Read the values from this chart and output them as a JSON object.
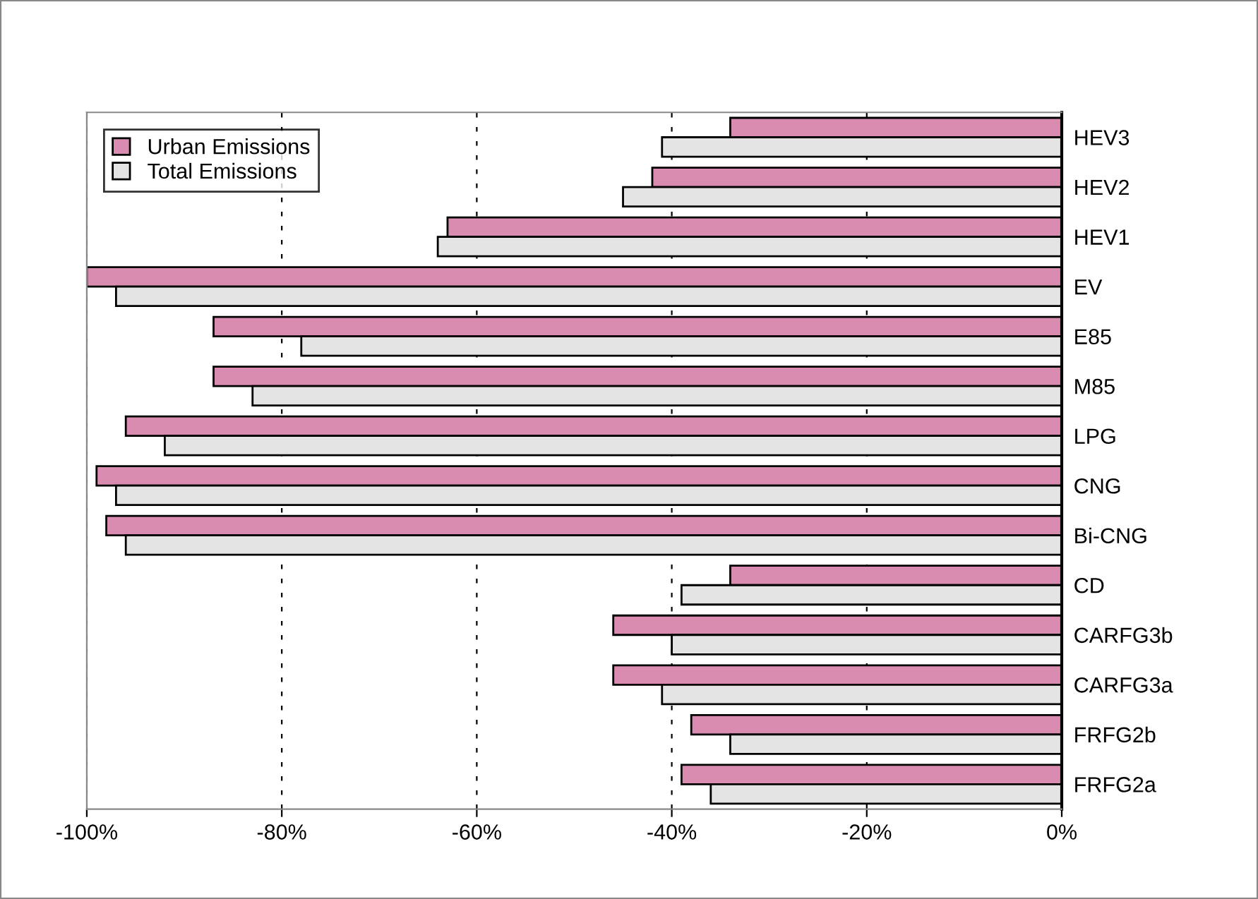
{
  "chart_data": {
    "type": "bar",
    "orientation": "horizontal",
    "categories": [
      "HEV3",
      "HEV2",
      "HEV1",
      "EV",
      "E85",
      "M85",
      "LPG",
      "CNG",
      "Bi-CNG",
      "CD",
      "CARFG3b",
      "CARFG3a",
      "FRFG2b",
      "FRFG2a"
    ],
    "series": [
      {
        "name": "Urban Emissions",
        "color": "#d98cb0",
        "values": [
          -34,
          -42,
          -63,
          -100,
          -87,
          -87,
          -96,
          -99,
          -98,
          -34,
          -46,
          -46,
          -38,
          -39
        ]
      },
      {
        "name": "Total Emissions",
        "color": "#e4e4e4",
        "values": [
          -41,
          -45,
          -64,
          -97,
          -78,
          -83,
          -92,
          -97,
          -96,
          -39,
          -40,
          -41,
          -34,
          -36
        ]
      }
    ],
    "xlim": [
      -100,
      0
    ],
    "xticks": [
      {
        "value": -100,
        "label": "-100%"
      },
      {
        "value": -80,
        "label": "-80%"
      },
      {
        "value": -60,
        "label": "-60%"
      },
      {
        "value": -40,
        "label": "-40%"
      },
      {
        "value": -20,
        "label": "-20%"
      },
      {
        "value": 0,
        "label": "0%"
      }
    ],
    "grid": "x",
    "legend": "top left"
  }
}
